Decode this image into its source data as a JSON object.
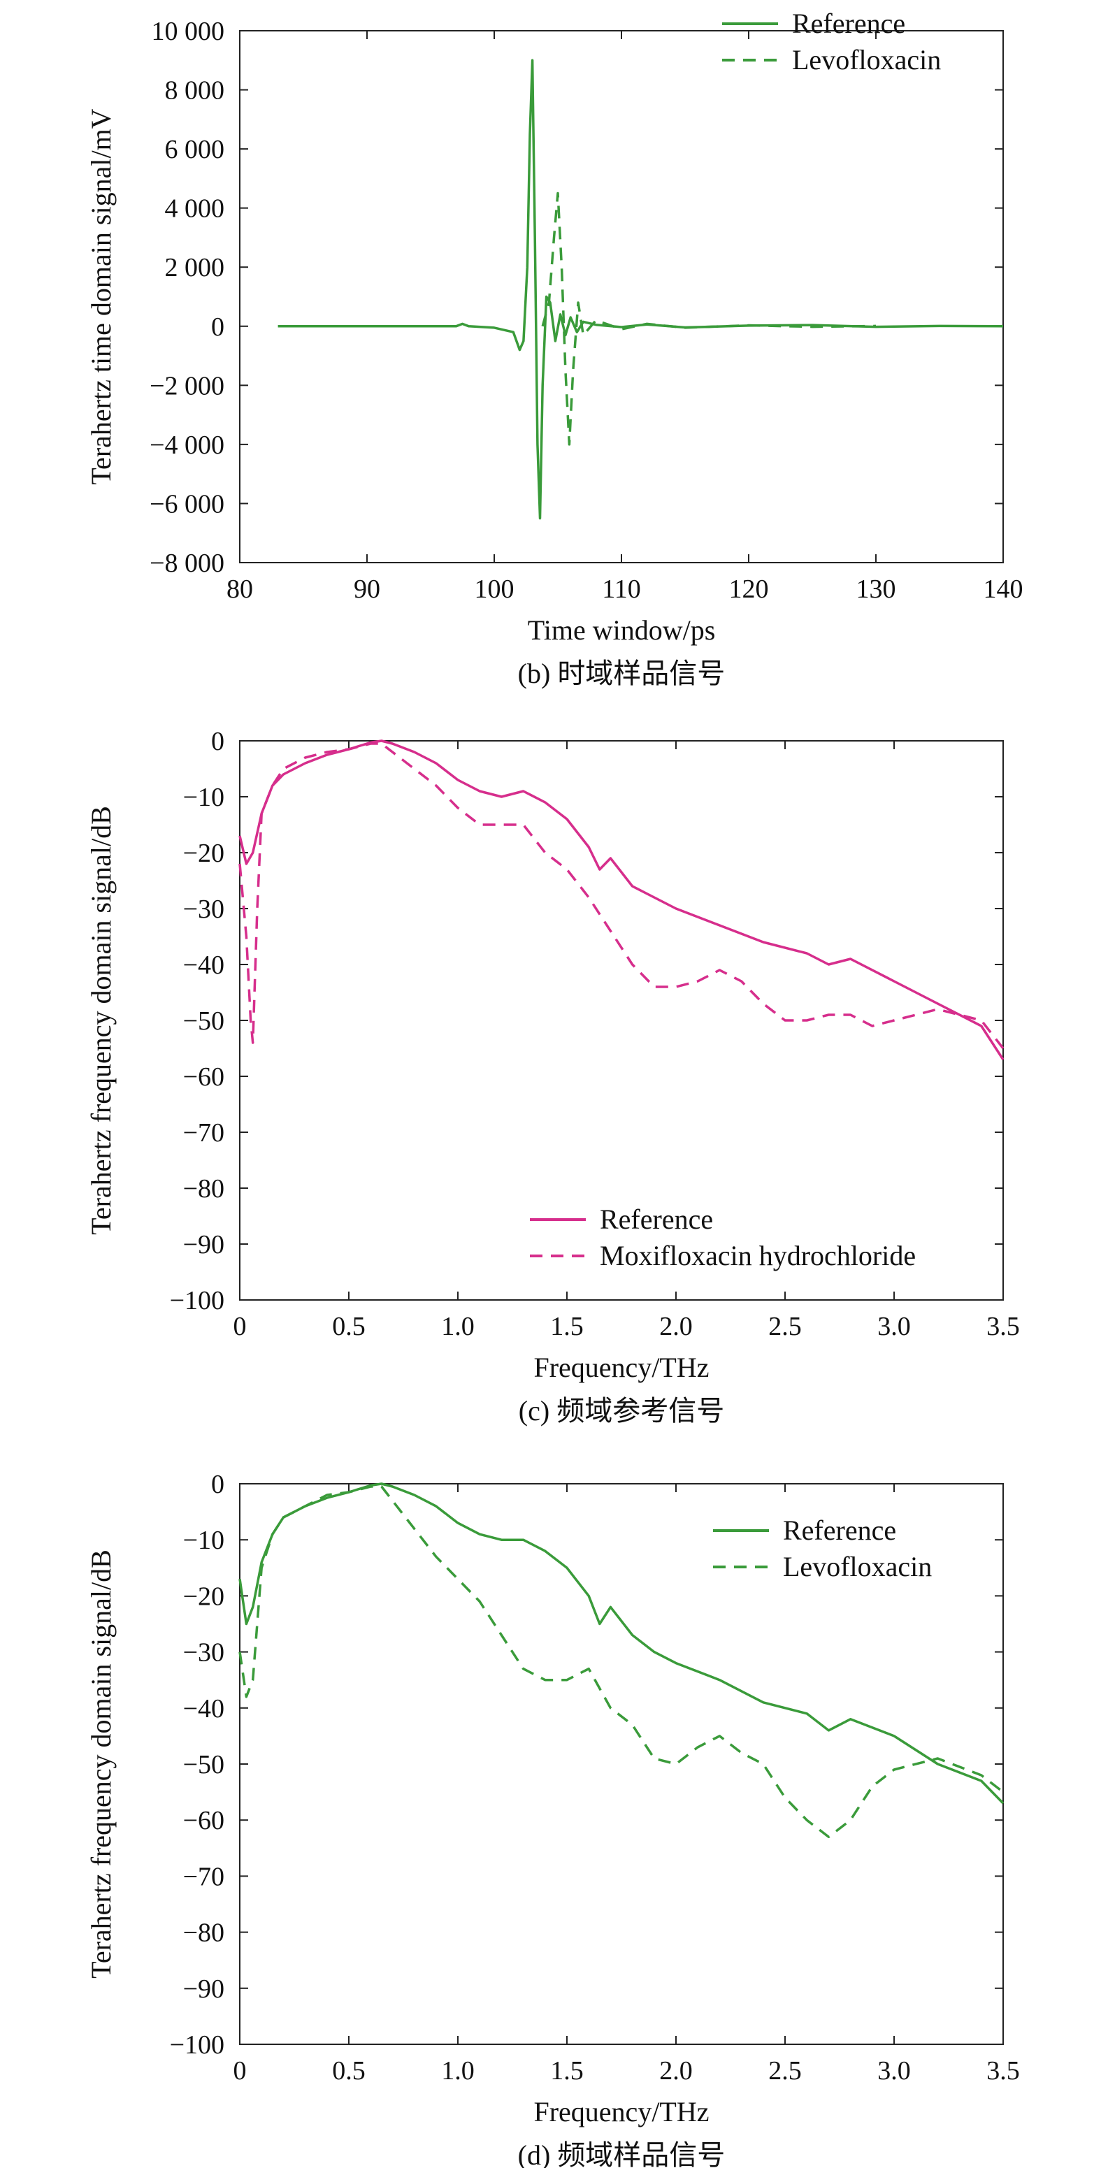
{
  "chart_data": [
    {
      "type": "line",
      "caption": "(b) 时域样品信号",
      "xlabel": "Time window/ps",
      "ylabel": "Terahertz time domain signal/mV",
      "xlim": [
        80,
        140
      ],
      "ylim": [
        -8000,
        10000
      ],
      "xticks": [
        80,
        90,
        100,
        110,
        120,
        130,
        140
      ],
      "xtick_labels": [
        "80",
        "90",
        "100",
        "110",
        "120",
        "130",
        "140"
      ],
      "yticks": [
        10000,
        8000,
        6000,
        4000,
        2000,
        0,
        -2000,
        -4000,
        -6000,
        -8000
      ],
      "ytick_labels": [
        "10 000",
        "8 000",
        "6 000",
        "4 000",
        "2 000",
        "0",
        "−2 000",
        "−4 000",
        "−6 000",
        "−8 000"
      ],
      "legend_position": "top-right",
      "grid": false,
      "series": [
        {
          "name": "Reference",
          "color": "#3a9b3a",
          "style": "solid",
          "x": [
            83,
            90,
            97,
            97.5,
            98,
            100,
            101.5,
            102,
            102.3,
            102.6,
            102.8,
            103.0,
            103.2,
            103.4,
            103.6,
            103.8,
            104.1,
            104.4,
            104.8,
            105.2,
            105.6,
            106.0,
            106.5,
            107.0,
            108,
            110,
            112,
            115,
            120,
            125,
            130,
            135,
            140
          ],
          "y": [
            0,
            0,
            0,
            80,
            0,
            -50,
            -200,
            -800,
            -500,
            2000,
            6500,
            9000,
            3000,
            -4000,
            -6500,
            -2000,
            1000,
            800,
            -500,
            400,
            -300,
            300,
            -200,
            150,
            50,
            -30,
            60,
            -40,
            20,
            40,
            -20,
            10,
            0
          ]
        },
        {
          "name": "Levofloxacin",
          "color": "#3a9b3a",
          "style": "dashed",
          "x": [
            103.8,
            104.3,
            104.7,
            105.0,
            105.3,
            105.6,
            105.9,
            106.2,
            106.6,
            107.0,
            108,
            110,
            112,
            115,
            120,
            125,
            130
          ],
          "y": [
            0,
            800,
            3000,
            4500,
            2000,
            -1500,
            -4000,
            -1500,
            800,
            -300,
            200,
            -100,
            80,
            -50,
            30,
            -20,
            10
          ]
        }
      ]
    },
    {
      "type": "line",
      "caption": "(c) 频域参考信号",
      "xlabel": "Frequency/THz",
      "ylabel": "Terahertz frequency domain signal/dB",
      "xlim": [
        0,
        3.5
      ],
      "ylim": [
        -100,
        0
      ],
      "xticks": [
        0,
        0.5,
        1.0,
        1.5,
        2.0,
        2.5,
        3.0,
        3.5
      ],
      "xtick_labels": [
        "0",
        "0.5",
        "1.0",
        "1.5",
        "2.0",
        "2.5",
        "3.0",
        "3.5"
      ],
      "yticks": [
        0,
        -10,
        -20,
        -30,
        -40,
        -50,
        -60,
        -70,
        -80,
        -90,
        -100
      ],
      "ytick_labels": [
        "0",
        "−10",
        "−20",
        "−30",
        "−40",
        "−50",
        "−60",
        "−70",
        "−80",
        "−90",
        "−100"
      ],
      "legend_position": "bottom-right",
      "grid": false,
      "series": [
        {
          "name": "Reference",
          "color": "#d62e8c",
          "style": "solid",
          "x": [
            0,
            0.03,
            0.06,
            0.1,
            0.15,
            0.2,
            0.3,
            0.4,
            0.5,
            0.6,
            0.65,
            0.7,
            0.8,
            0.9,
            1.0,
            1.1,
            1.2,
            1.3,
            1.4,
            1.5,
            1.6,
            1.65,
            1.7,
            1.8,
            1.9,
            2.0,
            2.2,
            2.4,
            2.6,
            2.7,
            2.8,
            3.0,
            3.2,
            3.4,
            3.5
          ],
          "y": [
            -17,
            -22,
            -20,
            -13,
            -8,
            -6,
            -4,
            -2.5,
            -1.5,
            -0.3,
            0,
            -0.5,
            -2,
            -4,
            -7,
            -9,
            -10,
            -9,
            -11,
            -14,
            -19,
            -23,
            -21,
            -26,
            -28,
            -30,
            -33,
            -36,
            -38,
            -40,
            -39,
            -43,
            -47,
            -51,
            -57
          ]
        },
        {
          "name": "Moxifloxacin hydrochloride",
          "color": "#d62e8c",
          "style": "dashed",
          "x": [
            0,
            0.03,
            0.05,
            0.06,
            0.08,
            0.1,
            0.15,
            0.2,
            0.3,
            0.4,
            0.5,
            0.6,
            0.65,
            0.7,
            0.8,
            0.9,
            1.0,
            1.1,
            1.2,
            1.3,
            1.4,
            1.5,
            1.6,
            1.7,
            1.8,
            1.9,
            2.0,
            2.1,
            2.2,
            2.3,
            2.4,
            2.5,
            2.6,
            2.7,
            2.8,
            2.9,
            3.0,
            3.2,
            3.4,
            3.5
          ],
          "y": [
            -22,
            -35,
            -50,
            -54,
            -30,
            -13,
            -8,
            -5,
            -3,
            -2,
            -1.5,
            -0.5,
            -0.5,
            -2,
            -5,
            -8,
            -12,
            -15,
            -15,
            -15,
            -20,
            -23,
            -28,
            -34,
            -40,
            -44,
            -44,
            -43,
            -41,
            -43,
            -47,
            -50,
            -50,
            -49,
            -49,
            -51,
            -50,
            -48,
            -50,
            -55
          ]
        }
      ]
    },
    {
      "type": "line",
      "caption": "(d) 频域样品信号",
      "xlabel": "Frequency/THz",
      "ylabel": "Terahertz frequency domain signal/dB",
      "xlim": [
        0,
        3.5
      ],
      "ylim": [
        -100,
        0
      ],
      "xticks": [
        0,
        0.5,
        1.0,
        1.5,
        2.0,
        2.5,
        3.0,
        3.5
      ],
      "xtick_labels": [
        "0",
        "0.5",
        "1.0",
        "1.5",
        "2.0",
        "2.5",
        "3.0",
        "3.5"
      ],
      "yticks": [
        0,
        -10,
        -20,
        -30,
        -40,
        -50,
        -60,
        -70,
        -80,
        -90,
        -100
      ],
      "ytick_labels": [
        "0",
        "−10",
        "−20",
        "−30",
        "−40",
        "−50",
        "−60",
        "−70",
        "−80",
        "−90",
        "−100"
      ],
      "legend_position": "top-right",
      "grid": false,
      "series": [
        {
          "name": "Reference",
          "color": "#3a9b3a",
          "style": "solid",
          "x": [
            0,
            0.03,
            0.06,
            0.1,
            0.15,
            0.2,
            0.3,
            0.4,
            0.5,
            0.6,
            0.65,
            0.7,
            0.8,
            0.9,
            1.0,
            1.1,
            1.2,
            1.3,
            1.4,
            1.5,
            1.6,
            1.65,
            1.7,
            1.8,
            1.9,
            2.0,
            2.2,
            2.4,
            2.6,
            2.7,
            2.8,
            3.0,
            3.2,
            3.4,
            3.5
          ],
          "y": [
            -17,
            -25,
            -22,
            -14,
            -9,
            -6,
            -4,
            -2.5,
            -1.5,
            -0.3,
            0,
            -0.5,
            -2,
            -4,
            -7,
            -9,
            -10,
            -10,
            -12,
            -15,
            -20,
            -25,
            -22,
            -27,
            -30,
            -32,
            -35,
            -39,
            -41,
            -44,
            -42,
            -45,
            -50,
            -53,
            -57
          ]
        },
        {
          "name": "Levofloxacin",
          "color": "#3a9b3a",
          "style": "dashed",
          "x": [
            0,
            0.03,
            0.06,
            0.1,
            0.15,
            0.2,
            0.3,
            0.4,
            0.5,
            0.6,
            0.65,
            0.7,
            0.8,
            0.9,
            1.0,
            1.1,
            1.2,
            1.3,
            1.4,
            1.5,
            1.6,
            1.7,
            1.8,
            1.9,
            2.0,
            2.1,
            2.2,
            2.3,
            2.4,
            2.5,
            2.6,
            2.7,
            2.8,
            2.9,
            3.0,
            3.2,
            3.4,
            3.5
          ],
          "y": [
            -30,
            -38,
            -35,
            -15,
            -9,
            -6,
            -4,
            -2,
            -1.5,
            -0.5,
            -0.5,
            -3,
            -8,
            -13,
            -17,
            -21,
            -27,
            -33,
            -35,
            -35,
            -33,
            -40,
            -43,
            -49,
            -50,
            -47,
            -45,
            -48,
            -50,
            -56,
            -60,
            -63,
            -60,
            -54,
            -51,
            -49,
            -52,
            -55
          ]
        }
      ]
    }
  ]
}
